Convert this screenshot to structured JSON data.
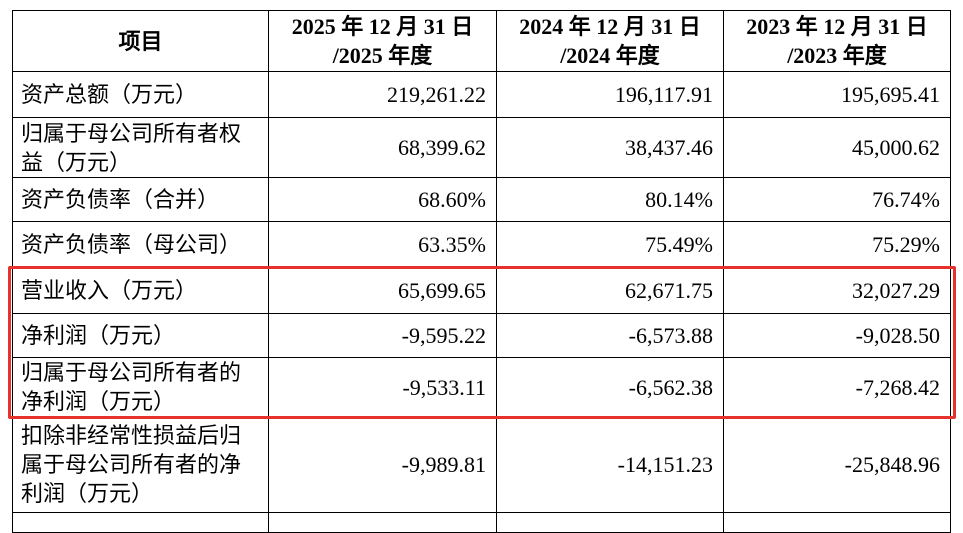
{
  "table": {
    "header": [
      "项目",
      [
        "2025 年 12 月 31 日",
        "/2025 年度"
      ],
      [
        "2024 年 12 月 31 日",
        "/2024 年度"
      ],
      [
        "2023 年 12 月 31 日",
        "/2023 年度"
      ]
    ],
    "rows": [
      [
        "资产总额（万元）",
        "219,261.22",
        "196,117.91",
        "195,695.41"
      ],
      [
        "归属于母公司所有者权益（万元）",
        "68,399.62",
        "38,437.46",
        "45,000.62"
      ],
      [
        "资产负债率（合并）",
        "68.60%",
        "80.14%",
        "76.74%"
      ],
      [
        "资产负债率（母公司）",
        "63.35%",
        "75.49%",
        "75.29%"
      ],
      [
        "营业收入（万元）",
        "65,699.65",
        "62,671.75",
        "32,027.29"
      ],
      [
        "净利润（万元）",
        "-9,595.22",
        "-6,573.88",
        "-9,028.50"
      ],
      [
        "归属于母公司所有者的净利润（万元）",
        "-9,533.11",
        "-6,562.38",
        "-7,268.42"
      ],
      [
        "扣除非经常性损益后归属于母公司所有者的净利润（万元）",
        "-9,989.81",
        "-14,151.23",
        "-25,848.96"
      ]
    ]
  }
}
